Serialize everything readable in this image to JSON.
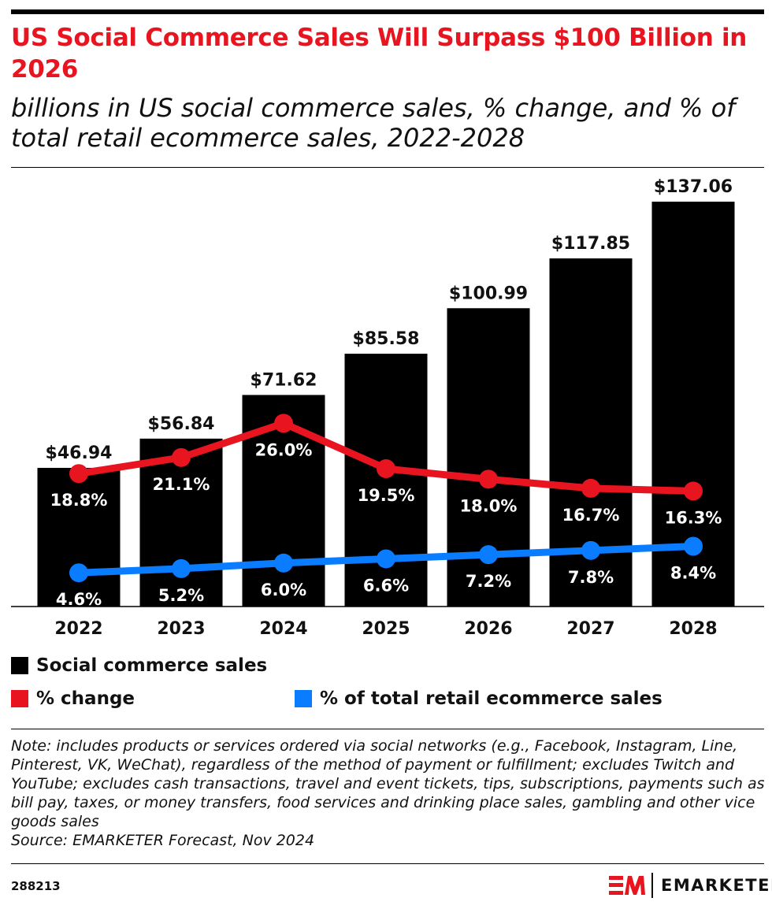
{
  "title": "US Social Commerce Sales Will Surpass $100 Billion in 2026",
  "subtitle": "billions in US social commerce sales, % change, and % of total retail ecommerce sales, 2022-2028",
  "chart_data": {
    "type": "bar+line",
    "categories": [
      "2022",
      "2023",
      "2024",
      "2025",
      "2026",
      "2027",
      "2028"
    ],
    "series": [
      {
        "name": "Social commerce sales",
        "type": "bar",
        "values": [
          46.94,
          56.84,
          71.62,
          85.58,
          100.99,
          117.85,
          137.06
        ],
        "labels": [
          "$46.94",
          "$56.84",
          "$71.62",
          "$85.58",
          "$100.99",
          "$117.85",
          "$137.06"
        ],
        "color": "#000000"
      },
      {
        "name": "% change",
        "type": "line",
        "values": [
          18.8,
          21.1,
          26.0,
          19.5,
          18.0,
          16.7,
          16.3
        ],
        "labels": [
          "18.8%",
          "21.1%",
          "26.0%",
          "19.5%",
          "18.0%",
          "16.7%",
          "16.3%"
        ],
        "color": "#e8141f"
      },
      {
        "name": "% of total retail ecommerce sales",
        "type": "line",
        "values": [
          4.6,
          5.2,
          6.0,
          6.6,
          7.2,
          7.8,
          8.4
        ],
        "labels": [
          "4.6%",
          "5.2%",
          "6.0%",
          "6.6%",
          "7.2%",
          "7.8%",
          "8.4%"
        ],
        "color": "#0a7cff"
      }
    ],
    "legend_placement": "bottom",
    "grid": false
  },
  "note": "Note: includes products or services ordered via social networks (e.g., Facebook, Instagram, Line, Pinterest, VK, WeChat), regardless of the method of payment or fulfillment; excludes Twitch and YouTube; excludes cash transactions, travel and event tickets, tips, subscriptions, payments such as bill pay, taxes, or money transfers, food services and drinking place sales, gambling and other vice goods sales",
  "source": "Source: EMARKETER Forecast, Nov 2024",
  "chart_id": "288213",
  "brand": {
    "logo_text": "EMARKETER",
    "logo_mark": "EM",
    "accent": "#e8141f"
  }
}
